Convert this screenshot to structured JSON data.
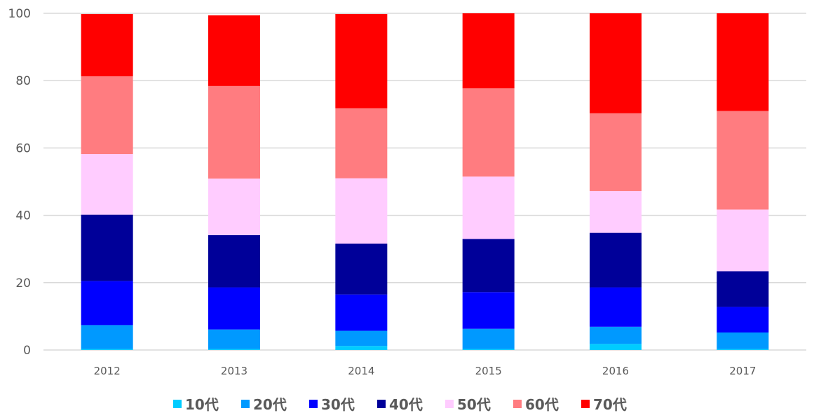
{
  "chart_data": {
    "type": "bar",
    "stacked": true,
    "categories": [
      "2012",
      "2013",
      "2014",
      "2015",
      "2016",
      "2017"
    ],
    "series": [
      {
        "name": "10代",
        "color": "#00CCFF",
        "values": [
          0.3,
          0.3,
          1.2,
          0.3,
          1.8,
          0.3
        ]
      },
      {
        "name": "20代",
        "color": "#0099FF",
        "values": [
          7.1,
          5.8,
          4.5,
          6.0,
          5.1,
          4.9
        ]
      },
      {
        "name": "30代",
        "color": "#0000FF",
        "values": [
          13.1,
          12.5,
          10.8,
          10.9,
          11.7,
          7.6
        ]
      },
      {
        "name": "40代",
        "color": "#000099",
        "values": [
          19.7,
          15.5,
          15.1,
          15.8,
          16.2,
          10.6
        ]
      },
      {
        "name": "50代",
        "color": "#FFCCFF",
        "values": [
          18.0,
          16.8,
          19.4,
          18.5,
          12.4,
          18.3
        ]
      },
      {
        "name": "60代",
        "color": "#FF7C80",
        "values": [
          23.1,
          27.5,
          20.8,
          26.2,
          23.1,
          29.3
        ]
      },
      {
        "name": "70代",
        "color": "#FF0000",
        "values": [
          18.5,
          21.0,
          28.0,
          22.3,
          29.7,
          29.0
        ]
      }
    ],
    "ylim": [
      0,
      100
    ],
    "yticks": [
      "0",
      "20",
      "40",
      "60",
      "80",
      "100"
    ],
    "grid": true,
    "legend_position": "bottom"
  }
}
